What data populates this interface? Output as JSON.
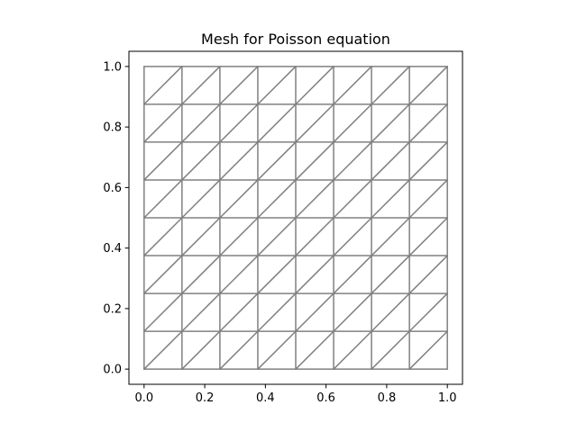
{
  "chart_data": {
    "type": "mesh",
    "title": "Mesh for Poisson equation",
    "xlabel": "",
    "ylabel": "",
    "xlim": [
      -0.05,
      1.05
    ],
    "ylim": [
      -0.05,
      1.05
    ],
    "grid": false,
    "mesh": {
      "nx": 8,
      "ny": 8,
      "x_range": [
        0.0,
        1.0
      ],
      "y_range": [
        0.0,
        1.0
      ],
      "diagonal": "lower-left to upper-right",
      "line_color": "#808080"
    },
    "x_ticks": [
      "0.0",
      "0.2",
      "0.4",
      "0.6",
      "0.8",
      "1.0"
    ],
    "y_ticks": [
      "0.0",
      "0.2",
      "0.4",
      "0.6",
      "0.8",
      "1.0"
    ]
  }
}
